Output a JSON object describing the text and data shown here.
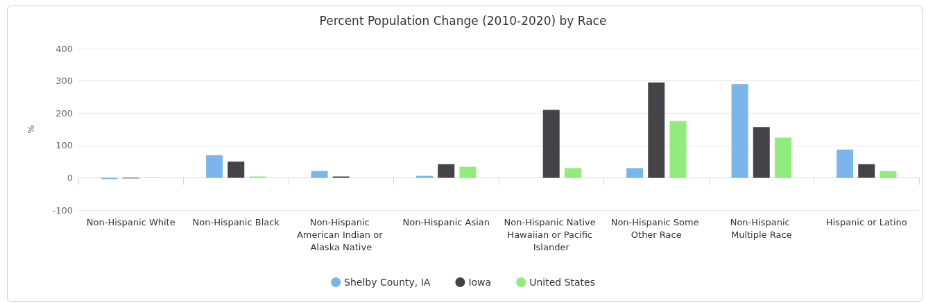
{
  "chart_data": {
    "type": "bar",
    "title": "Percent Population Change (2010-2020) by Race",
    "ylabel": "%",
    "categories": [
      "Non-Hispanic White",
      "Non-Hispanic Black",
      "Non-Hispanic American Indian or Alaska Native",
      "Non-Hispanic Asian",
      "Non-Hispanic Native Hawaiian or Pacific Islander",
      "Non-Hispanic Some Other Race",
      "Non-Hispanic Multiple Race",
      "Hispanic or Latino"
    ],
    "series": [
      {
        "name": "Shelby County, IA",
        "color": "#7cb5ec",
        "values": [
          -4,
          70,
          21,
          6,
          null,
          30,
          290,
          87
        ]
      },
      {
        "name": "Iowa",
        "color": "#434348",
        "values": [
          -2,
          50,
          4,
          42,
          210,
          295,
          157,
          42
        ]
      },
      {
        "name": "United States",
        "color": "#90ed7d",
        "values": [
          -1,
          4,
          null,
          34,
          30,
          176,
          124,
          21
        ]
      }
    ],
    "ylim": [
      -100,
      400
    ],
    "yticks": [
      -100,
      0,
      100,
      200,
      300,
      400
    ],
    "grid": "y",
    "legend": "bottom"
  }
}
